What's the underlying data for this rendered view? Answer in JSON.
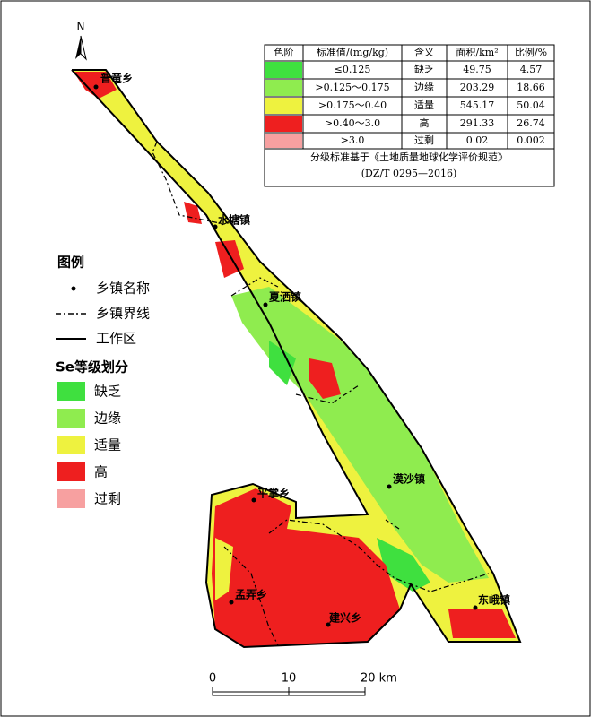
{
  "table": {
    "header": [
      "色阶",
      "标准值/(mg/kg)",
      "含义",
      "面积/km²",
      "比例/%"
    ],
    "rows": [
      {
        "color": "#3fe03f",
        "range": "≤0.125",
        "meaning": "缺乏",
        "area": 49.75,
        "ratio": 4.57
      },
      {
        "color": "#8fec4f",
        "range": ">0.125～0.175",
        "meaning": "边缘",
        "area": 203.29,
        "ratio": 18.66
      },
      {
        "color": "#eef23f",
        "range": ">0.175～0.40",
        "meaning": "适量",
        "area": 545.17,
        "ratio": 50.04
      },
      {
        "color": "#ee1f1f",
        "range": ">0.40～3.0",
        "meaning": "高",
        "area": 291.33,
        "ratio": 26.74
      },
      {
        "color": "#f7a0a0",
        "range": ">3.0",
        "meaning": "过剩",
        "area": 0.02,
        "ratio": 0.002
      }
    ],
    "note": [
      "分级标准基于《土地质量地球化学评价规范》",
      "(DZ/T 0295—2016)"
    ]
  },
  "legend": {
    "title": "图例",
    "symbols": [
      "乡镇名称",
      "乡镇界线",
      "工作区"
    ],
    "class_title": "Se等级划分",
    "classes": [
      {
        "label": "缺乏",
        "color": "#3fe03f"
      },
      {
        "label": "边缘",
        "color": "#8fec4f"
      },
      {
        "label": "适量",
        "color": "#eef23f"
      },
      {
        "label": "高",
        "color": "#ee1f1f"
      },
      {
        "label": "过剩",
        "color": "#f7a0a0"
      }
    ]
  },
  "towns": [
    "普竜乡",
    "水塘镇",
    "夏洒镇",
    "漠沙镇",
    "平掌乡",
    "孟弄乡",
    "建兴乡",
    "东峨镇"
  ],
  "north": "N",
  "scale_bar": [
    "0",
    "10",
    "20 km"
  ]
}
